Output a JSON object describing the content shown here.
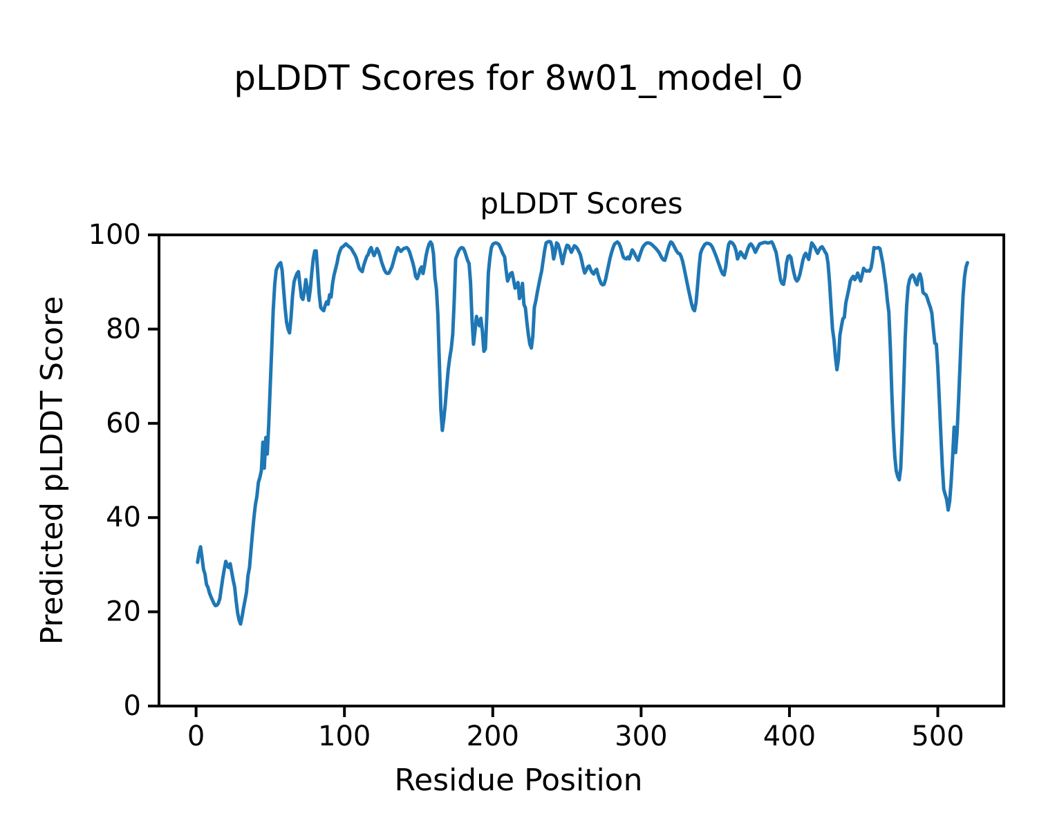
{
  "figure": {
    "suptitle": "pLDDT Scores for 8w01_model_0",
    "background": "#ffffff"
  },
  "chart_data": {
    "type": "line",
    "title": "pLDDT Scores",
    "xlabel": "Residue Position",
    "ylabel": "Predicted pLDDT Score",
    "xlim": [
      -25,
      544.5
    ],
    "ylim": [
      0,
      100
    ],
    "x_ticks": [
      0,
      100,
      200,
      300,
      400,
      500
    ],
    "y_ticks": [
      0,
      20,
      40,
      60,
      80,
      100
    ],
    "grid": false,
    "legend": false,
    "line_color": "#1f77b4",
    "spine_color": "#000000",
    "series": [
      {
        "name": "pLDDT",
        "color": "#1f77b4",
        "x_start": 1,
        "x_step": 1,
        "values": [
          30.5,
          32.5,
          33.8,
          31.5,
          29,
          28,
          25.8,
          25.2,
          24,
          23.2,
          22.5,
          21.8,
          21.3,
          21.4,
          21.8,
          22.8,
          25,
          27.2,
          29,
          30.7,
          29.8,
          29.4,
          30.2,
          28.5,
          26.7,
          25.3,
          22.3,
          19.8,
          18.2,
          17.4,
          19,
          20.8,
          22.5,
          24.2,
          27.7,
          29.4,
          33,
          36.7,
          40,
          42.8,
          44.5,
          47.5,
          48.5,
          50,
          56,
          50.5,
          57,
          53.5,
          60,
          68,
          76,
          84,
          89.5,
          92.5,
          93.3,
          93.8,
          94.1,
          92.5,
          88.5,
          84.5,
          81.5,
          80,
          79.2,
          82.5,
          87,
          90,
          91,
          91.8,
          92.2,
          89.5,
          86.8,
          86.3,
          88,
          90.5,
          88.5,
          86.1,
          88.5,
          92,
          95,
          96.6,
          96.6,
          92,
          87.5,
          84.6,
          84.2,
          83.9,
          85,
          85.8,
          85.3,
          87.3,
          86.8,
          89.7,
          91.5,
          92.7,
          94,
          95.6,
          96.6,
          97.3,
          97.5,
          97.8,
          98.1,
          97.8,
          97.5,
          97.3,
          96.9,
          96.3,
          95.8,
          95.1,
          94,
          92.9,
          92.5,
          92.2,
          93.5,
          94.5,
          95.4,
          95.8,
          96.8,
          97.3,
          96.3,
          95.6,
          96.3,
          97.1,
          96.5,
          95.5,
          94.3,
          93.4,
          92.5,
          92,
          91.8,
          91.9,
          92.5,
          93.2,
          94.3,
          95.5,
          96.5,
          97.3,
          96.9,
          96.5,
          96.8,
          97.1,
          97.2,
          97.3,
          97,
          96.3,
          95.2,
          94.2,
          92.9,
          91.2,
          90.7,
          91.5,
          92.7,
          93.2,
          91.8,
          93.5,
          95.5,
          97,
          98,
          98.5,
          98,
          96,
          91,
          88.5,
          83,
          73,
          63,
          58.5,
          61,
          64,
          68,
          71.5,
          74,
          75.8,
          79,
          86,
          94.9,
          95.8,
          96.6,
          97.1,
          97.3,
          97.2,
          96.6,
          95.6,
          94.6,
          93.9,
          90,
          82,
          76.8,
          79.5,
          82.7,
          81.5,
          80.7,
          82.3,
          79.5,
          75.3,
          75.8,
          83,
          91.9,
          95,
          97.2,
          98,
          98.2,
          98.3,
          98.2,
          98,
          97.4,
          96.6,
          95.9,
          95.3,
          92.5,
          90.2,
          91,
          91.8,
          92,
          90.5,
          88.7,
          89.3,
          89.9,
          86.5,
          87.5,
          89.7,
          85.2,
          84.5,
          81.5,
          78.8,
          76.8,
          76,
          78.5,
          84.6,
          86,
          87.8,
          89.4,
          91,
          92.4,
          94.6,
          96.8,
          98.3,
          98.5,
          98.6,
          98.5,
          97.5,
          94.9,
          96.2,
          98.3,
          98,
          97,
          95.5,
          93.9,
          95.5,
          96.8,
          97.8,
          97.7,
          97,
          96.3,
          97,
          97.7,
          97.5,
          97.1,
          96.5,
          95.8,
          94.5,
          93,
          91.9,
          92.5,
          93.2,
          93.4,
          92.6,
          92,
          91.7,
          92.3,
          92.7,
          91.5,
          90.5,
          89.7,
          89.4,
          89.5,
          90.5,
          92,
          93.5,
          95,
          96.2,
          97.2,
          98,
          98.3,
          98.5,
          98.2,
          97.5,
          96.4,
          95.3,
          95,
          94.9,
          95.3,
          94.9,
          95.8,
          96.8,
          96.4,
          95.7,
          95.1,
          94.6,
          95.5,
          96.5,
          97.3,
          97.8,
          98.1,
          98.3,
          98.3,
          98.2,
          98,
          97.7,
          97.4,
          97.1,
          96.7,
          96.3,
          95.7,
          95.1,
          94.7,
          94.6,
          95.6,
          96.8,
          97.8,
          98.5,
          98.3,
          97.7,
          97.1,
          96.5,
          96.1,
          96,
          95.4,
          94.4,
          92.9,
          91.4,
          89.8,
          88.3,
          86.8,
          85.4,
          84.3,
          83.9,
          85.6,
          89,
          93,
          96,
          96.9,
          97.5,
          98,
          98.2,
          98.2,
          98.1,
          97.9,
          97.4,
          96.7,
          95.9,
          95.1,
          94.2,
          93.3,
          92.4,
          91.7,
          91.5,
          93.2,
          96,
          98,
          98.5,
          98.4,
          98.1,
          97.6,
          96.6,
          94.9,
          95.6,
          96.4,
          96,
          95.4,
          95.1,
          96.1,
          97.1,
          97.8,
          98.1,
          97.7,
          97.1,
          96.3,
          96.9,
          97.6,
          98.1,
          98.2,
          98.3,
          98.4,
          98.4,
          98.3,
          98.3,
          98.4,
          98.5,
          98,
          97.1,
          96.3,
          94.4,
          92.4,
          90.4,
          89.7,
          89.5,
          91.2,
          94,
          95.4,
          95.6,
          95.2,
          93.4,
          91.9,
          90.7,
          90.2,
          90.6,
          91.6,
          93,
          94.6,
          95.6,
          96.1,
          95.4,
          94.8,
          96.6,
          98.3,
          97.9,
          97.4,
          96.7,
          96.1,
          96.8,
          97.3,
          97.5,
          97,
          96.4,
          95.9,
          94,
          90,
          85,
          80,
          77.8,
          74,
          71.4,
          73.5,
          78.7,
          80.5,
          82.2,
          82.5,
          85.6,
          87,
          88.5,
          90.2,
          90.8,
          91.2,
          90.5,
          91,
          91.9,
          91,
          90.2,
          91.5,
          92.9,
          92.5,
          92.3,
          92.4,
          92.3,
          93,
          94.8,
          97.3,
          97.2,
          97.2,
          97.3,
          97.1,
          95.5,
          93.9,
          91.5,
          89.3,
          86,
          83.6,
          76,
          66.5,
          59,
          53,
          49.9,
          48.7,
          48,
          50.5,
          58,
          68,
          78,
          85,
          89,
          90.5,
          91.2,
          91.5,
          91,
          90,
          89.4,
          91,
          91.7,
          90.5,
          87.8,
          87.5,
          87.3,
          86.5,
          85.5,
          84.6,
          83.4,
          80,
          77,
          76.8,
          72,
          65,
          58,
          51,
          46,
          44.9,
          43.8,
          41.6,
          43.5,
          47.5,
          53,
          59.2,
          53.8,
          58,
          65,
          72.5,
          80,
          87,
          91,
          93.2,
          94.1
        ]
      }
    ]
  }
}
